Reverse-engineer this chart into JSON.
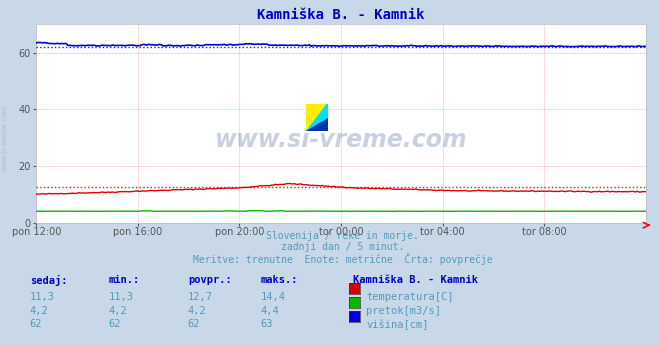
{
  "title": "Kamniška B. - Kamnik",
  "bg_color": "#c8d8e8",
  "plot_bg_color": "#ffffff",
  "grid_color": "#ffaaaa",
  "x_ticks_labels": [
    "pon 12:00",
    "pon 16:00",
    "pon 20:00",
    "tor 00:00",
    "tor 04:00",
    "tor 08:00"
  ],
  "x_ticks_pos": [
    0,
    48,
    96,
    144,
    192,
    240
  ],
  "n_points": 289,
  "temp_avg": 12.7,
  "flow_avg": 4.2,
  "height_avg": 62,
  "ylim": [
    0,
    70
  ],
  "yticks": [
    0,
    20,
    40,
    60
  ],
  "temp_color": "#dd0000",
  "flow_color": "#00bb00",
  "height_color": "#0000dd",
  "subtitle1": "Slovenija / reke in morje.",
  "subtitle2": "zadnji dan / 5 minut.",
  "subtitle3": "Meritve: trenutne  Enote: metrične  Črta: povprečje",
  "legend_title": "Kamniška B. - Kamnik",
  "legend_items": [
    "temperatura[C]",
    "pretok[m3/s]",
    "višina[cm]"
  ],
  "legend_colors": [
    "#dd0000",
    "#00bb00",
    "#0000dd"
  ],
  "table_headers": [
    "sedaj:",
    "min.:",
    "povpr.:",
    "maks.:"
  ],
  "table_values": [
    [
      "11,3",
      "11,3",
      "12,7",
      "14,4"
    ],
    [
      "4,2",
      "4,2",
      "4,2",
      "4,4"
    ],
    [
      "62",
      "62",
      "62",
      "63"
    ]
  ],
  "watermark_text": "www.si-vreme.com",
  "side_label": "www.si-vreme.com",
  "title_color": "#0000cc",
  "text_color": "#5599bb",
  "label_color": "#0000cc",
  "tick_color": "#555555"
}
